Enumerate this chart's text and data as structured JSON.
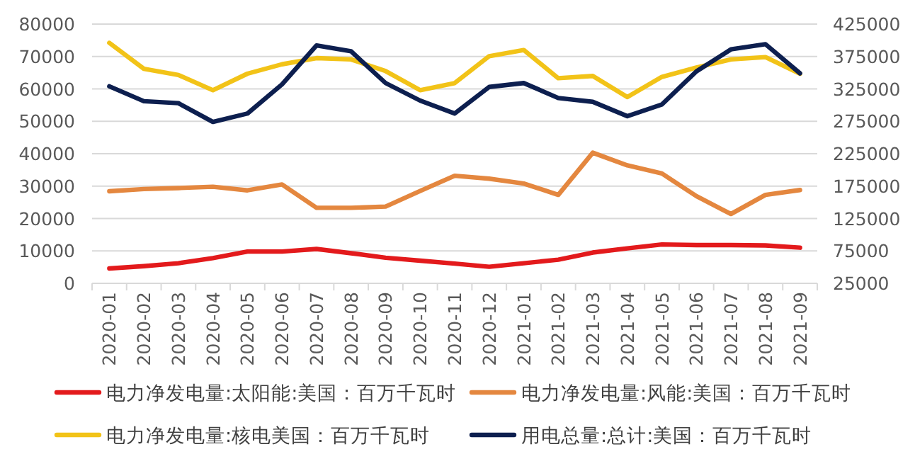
{
  "chart_data": {
    "type": "line",
    "categories": [
      "2020-01",
      "2020-02",
      "2020-03",
      "2020-04",
      "2020-05",
      "2020-06",
      "2020-07",
      "2020-08",
      "2020-09",
      "2020-10",
      "2020-11",
      "2020-12",
      "2021-01",
      "2021-02",
      "2021-03",
      "2021-04",
      "2021-05",
      "2021-06",
      "2021-07",
      "2021-08",
      "2021-09"
    ],
    "series": [
      {
        "name": "电力净发电量:太阳能:美国：百万千瓦时",
        "color": "#e31a1c",
        "values": [
          4600,
          5300,
          6200,
          7800,
          9800,
          9800,
          10600,
          9300,
          7900,
          7000,
          6100,
          5100,
          6200,
          7300,
          9500,
          10800,
          12000,
          11800,
          11800,
          11700,
          11000
        ]
      },
      {
        "name": "电力净发电量:风能:美国：百万千瓦时",
        "color": "#e4873f",
        "values": [
          28400,
          29100,
          29400,
          29800,
          28700,
          30500,
          23300,
          23300,
          23700,
          28500,
          33200,
          32300,
          30800,
          27300,
          40300,
          36400,
          33900,
          26900,
          21400,
          27300,
          28800
        ]
      },
      {
        "name": "电力净发电量:核电美国：百万千瓦时",
        "color": "#f2c318",
        "values": [
          74200,
          66200,
          64300,
          59600,
          64700,
          67600,
          69500,
          69100,
          65500,
          59600,
          61800,
          70100,
          72000,
          63300,
          64000,
          57500,
          63700,
          66600,
          69100,
          69800,
          64700
        ]
      },
      {
        "name": "用电总量:总计:美国：百万千瓦时",
        "color": "#0d1f4f",
        "axis": "y2",
        "values": [
          329000,
          306000,
          303000,
          274000,
          287000,
          332000,
          392000,
          383000,
          334000,
          307000,
          287000,
          328000,
          334000,
          311000,
          305000,
          283000,
          301000,
          352000,
          386000,
          394000,
          349000
        ]
      }
    ],
    "ylim": [
      0,
      80000
    ],
    "yticks": [
      0,
      10000,
      20000,
      30000,
      40000,
      50000,
      60000,
      70000,
      80000
    ],
    "y2lim": [
      25000,
      425000
    ],
    "y2ticks": [
      25000,
      75000,
      125000,
      175000,
      225000,
      275000,
      325000,
      375000,
      425000
    ],
    "grid": "y",
    "legend": "bottom",
    "marker": "none",
    "line_style": "solid"
  }
}
